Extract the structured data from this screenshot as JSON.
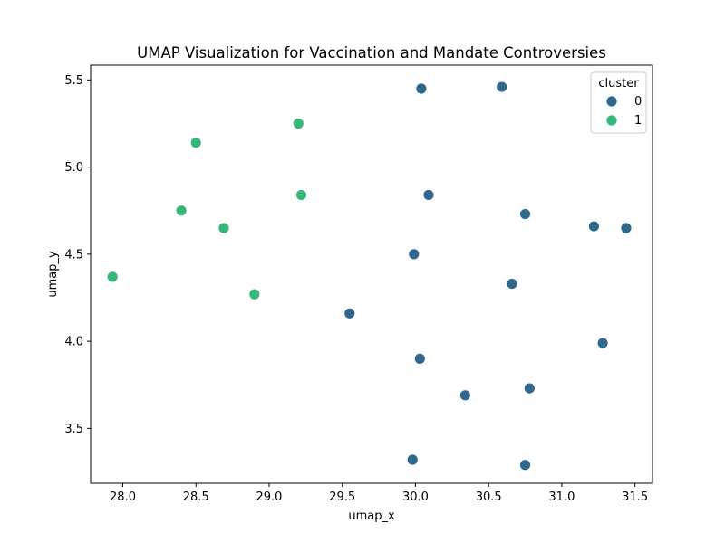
{
  "chart_data": {
    "type": "scatter",
    "title": "UMAP Visualization for Vaccination and Mandate Controversies",
    "xlabel": "umap_x",
    "ylabel": "umap_y",
    "xlim": [
      27.78,
      31.62
    ],
    "ylim": [
      3.185,
      5.585
    ],
    "xticks": [
      28.0,
      28.5,
      29.0,
      29.5,
      30.0,
      30.5,
      31.0,
      31.5
    ],
    "xtick_labels": [
      "28.0",
      "28.5",
      "29.0",
      "29.5",
      "30.0",
      "30.5",
      "31.0",
      "31.5"
    ],
    "yticks": [
      3.5,
      4.0,
      4.5,
      5.0,
      5.5
    ],
    "ytick_labels": [
      "3.5",
      "4.0",
      "4.5",
      "5.0",
      "5.5"
    ],
    "grid": false,
    "legend": {
      "title": "cluster",
      "placement": "top-right",
      "entries": [
        "0",
        "1"
      ]
    },
    "series": [
      {
        "name": "0",
        "color": "#30678d",
        "x": [
          30.04,
          30.59,
          30.09,
          30.75,
          31.22,
          31.44,
          29.99,
          30.66,
          29.55,
          31.28,
          30.03,
          30.78,
          30.34,
          29.98,
          30.75
        ],
        "y": [
          5.45,
          5.46,
          4.84,
          4.73,
          4.66,
          4.65,
          4.5,
          4.33,
          4.16,
          3.99,
          3.9,
          3.73,
          3.69,
          3.32,
          3.29
        ]
      },
      {
        "name": "1",
        "color": "#35b779",
        "x": [
          29.2,
          28.5,
          29.22,
          28.4,
          28.69,
          27.93,
          28.9
        ],
        "y": [
          5.25,
          5.14,
          4.84,
          4.75,
          4.65,
          4.37,
          4.27
        ]
      }
    ]
  }
}
